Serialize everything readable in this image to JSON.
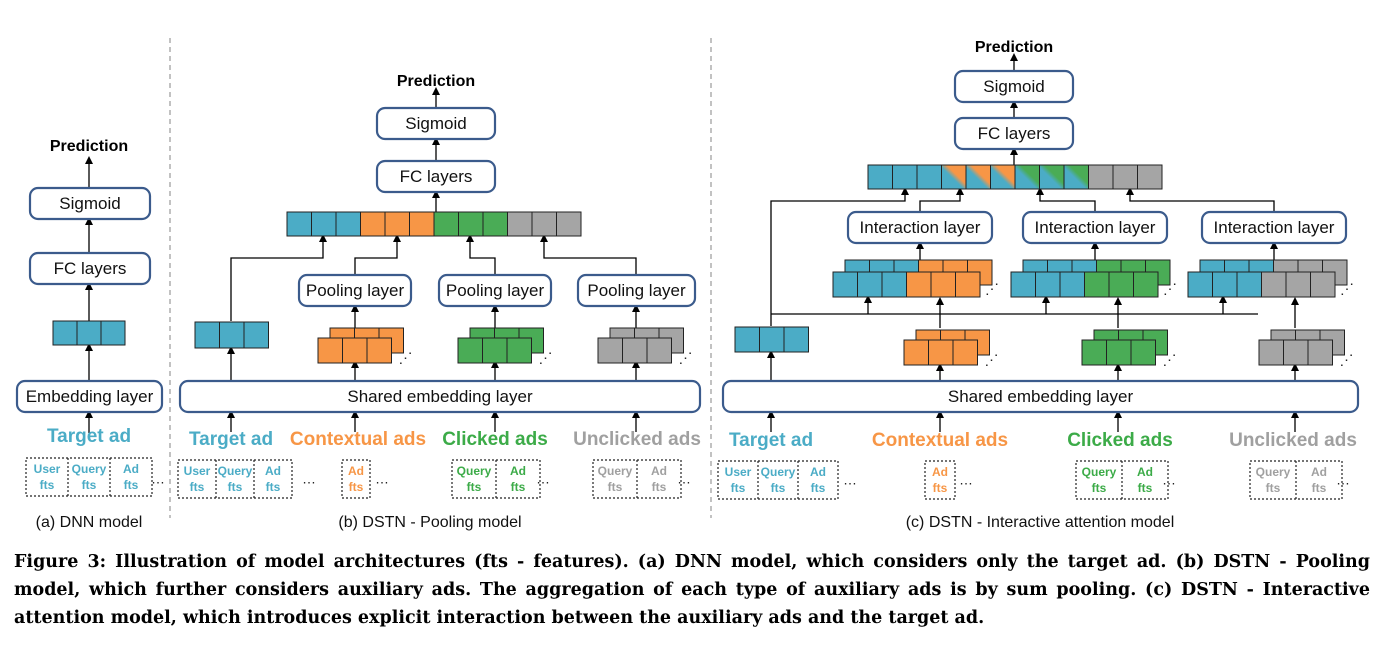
{
  "colors": {
    "blue": "#4bacc6",
    "orange": "#f79646",
    "green": "#4aac56",
    "gray": "#a5a5a5",
    "box_border": "#3b5b8c",
    "blue_text": "#4bacc6",
    "orange_text": "#f79646",
    "green_text": "#3cab48",
    "gray_text": "#a0a0a0"
  },
  "common": {
    "prediction": "Prediction",
    "sigmoid": "Sigmoid",
    "fc_layers": "FC layers",
    "embedding_layer": "Embedding layer",
    "shared_embedding_layer": "Shared embedding layer",
    "pooling_layer": "Pooling layer",
    "interaction_layer": "Interaction layer",
    "target_ad": "Target ad",
    "contextual_ads": "Contextual ads",
    "clicked_ads": "Clicked ads",
    "unclicked_ads": "Unclicked ads",
    "ellipsis": "…"
  },
  "features": {
    "user": [
      "User",
      "fts"
    ],
    "query": [
      "Query",
      "fts"
    ],
    "ad": [
      "Ad",
      "fts"
    ]
  },
  "subtitles": {
    "a": "(a) DNN model",
    "b": "(b) DSTN - Pooling model",
    "c": "(c) DSTN - Interactive attention model"
  },
  "caption": "Figure 3: Illustration of model architectures (fts - features). (a) DNN model, which considers only the target ad. (b) DSTN - Pooling model, which further considers auxiliary ads. The aggregation of each type of auxiliary ads is by sum pooling. (c) DSTN - Interactive attention model, which introduces explicit interaction between the auxiliary ads and the target ad."
}
